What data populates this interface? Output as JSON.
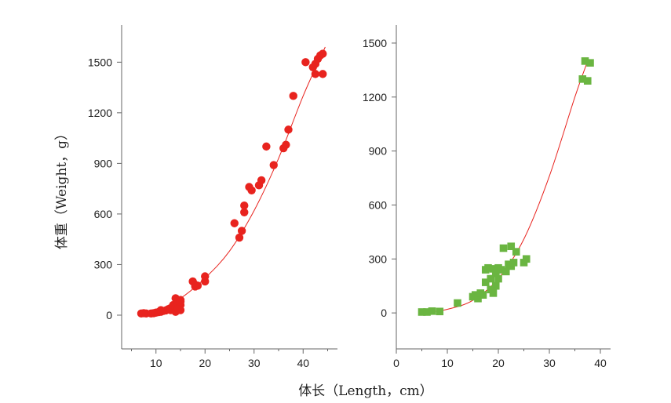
{
  "chart_data": [
    {
      "type": "scatter",
      "ylabel": "体重（Weight，g）",
      "xlabel": "",
      "xlim": [
        3,
        47
      ],
      "ylim": [
        -200,
        1720
      ],
      "xticks": [
        10,
        20,
        30,
        40
      ],
      "yticks": [
        0,
        300,
        600,
        900,
        1200,
        1500
      ],
      "marker": "circle",
      "marker_color": "#e8231e",
      "fit_color": "#e8231e",
      "fit_range": [
        7,
        44.5
      ],
      "fit_curve": [
        [
          7,
          0
        ],
        [
          10,
          25
        ],
        [
          15,
          100
        ],
        [
          20,
          220
        ],
        [
          25,
          380
        ],
        [
          30,
          620
        ],
        [
          35,
          930
        ],
        [
          40,
          1300
        ],
        [
          44.5,
          1590
        ]
      ],
      "series": [
        {
          "points": [
            [
              7,
              10
            ],
            [
              7.5,
              12
            ],
            [
              8,
              10
            ],
            [
              9,
              10
            ],
            [
              9.5,
              12
            ],
            [
              10,
              15
            ],
            [
              10.5,
              18
            ],
            [
              11,
              20
            ],
            [
              11,
              30
            ],
            [
              11.5,
              25
            ],
            [
              12,
              28
            ],
            [
              12.5,
              35
            ],
            [
              13,
              40
            ],
            [
              13,
              30
            ],
            [
              13.5,
              50
            ],
            [
              13.5,
              60
            ],
            [
              14,
              45
            ],
            [
              14,
              20
            ],
            [
              14,
              100
            ],
            [
              14.5,
              70
            ],
            [
              14.5,
              40
            ],
            [
              15,
              60
            ],
            [
              15,
              80
            ],
            [
              15,
              30
            ],
            [
              15,
              90
            ],
            [
              17.5,
              200
            ],
            [
              18,
              170
            ],
            [
              18,
              180
            ],
            [
              18.5,
              175
            ],
            [
              20,
              230
            ],
            [
              20,
              200
            ],
            [
              26,
              545
            ],
            [
              27,
              460
            ],
            [
              27.5,
              500
            ],
            [
              28,
              610
            ],
            [
              28,
              650
            ],
            [
              29,
              760
            ],
            [
              29.5,
              740
            ],
            [
              31,
              770
            ],
            [
              31.5,
              800
            ],
            [
              32.5,
              1000
            ],
            [
              34,
              890
            ],
            [
              36,
              990
            ],
            [
              36.5,
              1010
            ],
            [
              37,
              1100
            ],
            [
              38,
              1300
            ],
            [
              40.5,
              1500
            ],
            [
              42,
              1470
            ],
            [
              42.5,
              1430
            ],
            [
              42.5,
              1490
            ],
            [
              43,
              1520
            ],
            [
              43.5,
              1540
            ],
            [
              44,
              1430
            ],
            [
              44,
              1550
            ]
          ]
        }
      ]
    },
    {
      "type": "scatter",
      "ylabel": "",
      "xlabel": "",
      "xlim": [
        0,
        42
      ],
      "ylim": [
        -200,
        1600
      ],
      "xticks": [
        0,
        10,
        20,
        30,
        40
      ],
      "yticks": [
        0,
        300,
        600,
        900,
        1200,
        1500
      ],
      "marker": "square",
      "marker_color": "#6ab541",
      "fit_color": "#e8231e",
      "fit_range": [
        5,
        37.5
      ],
      "fit_curve": [
        [
          5,
          0
        ],
        [
          10,
          20
        ],
        [
          15,
          70
        ],
        [
          20,
          190
        ],
        [
          25,
          410
        ],
        [
          30,
          760
        ],
        [
          35,
          1200
        ],
        [
          37.5,
          1400
        ]
      ],
      "series": [
        {
          "points": [
            [
              5,
              5
            ],
            [
              6,
              5
            ],
            [
              7,
              10
            ],
            [
              8.5,
              8
            ],
            [
              12,
              55
            ],
            [
              15,
              90
            ],
            [
              15.5,
              100
            ],
            [
              16,
              80
            ],
            [
              16.5,
              110
            ],
            [
              17,
              100
            ],
            [
              17.5,
              170
            ],
            [
              17.5,
              240
            ],
            [
              18,
              250
            ],
            [
              18.5,
              130
            ],
            [
              18.5,
              190
            ],
            [
              19,
              110
            ],
            [
              19,
              245
            ],
            [
              19.5,
              220
            ],
            [
              19.5,
              150
            ],
            [
              20,
              190
            ],
            [
              20,
              250
            ],
            [
              20.5,
              240
            ],
            [
              21,
              360
            ],
            [
              21.5,
              230
            ],
            [
              22,
              270
            ],
            [
              22.5,
              260
            ],
            [
              22.5,
              370
            ],
            [
              23,
              280
            ],
            [
              23.5,
              340
            ],
            [
              25,
              280
            ],
            [
              25.5,
              300
            ],
            [
              36.5,
              1300
            ],
            [
              37,
              1400
            ],
            [
              37.5,
              1290
            ],
            [
              38,
              1390
            ]
          ]
        }
      ]
    }
  ],
  "figure": {
    "shared_xlabel": "体长（Length，cm）"
  }
}
